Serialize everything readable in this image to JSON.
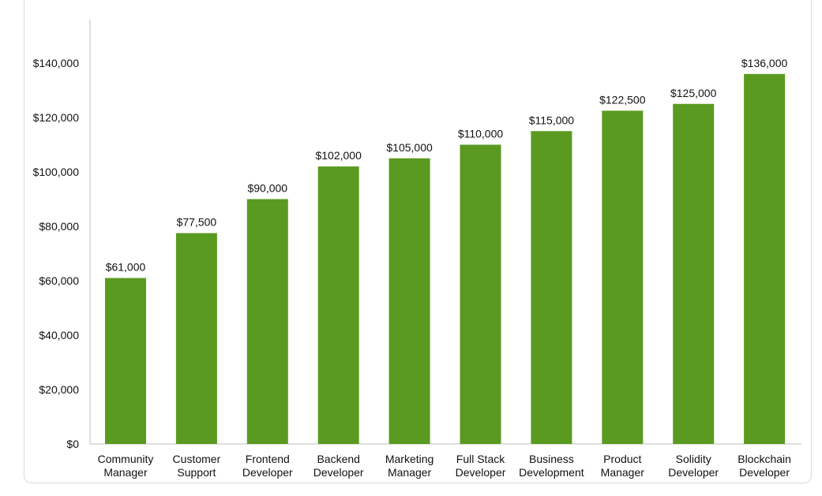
{
  "chart_data": {
    "type": "bar",
    "title": "",
    "xlabel": "",
    "ylabel": "",
    "ylim": [
      0,
      150000
    ],
    "yticks": [
      0,
      20000,
      40000,
      60000,
      80000,
      100000,
      120000,
      140000
    ],
    "ytick_labels": [
      "$0",
      "$20,000",
      "$40,000",
      "$60,000",
      "$80,000",
      "$100,000",
      "$120,000",
      "$140,000"
    ],
    "categories": [
      [
        "Community",
        "Manager"
      ],
      [
        "Customer",
        "Support"
      ],
      [
        "Frontend",
        "Developer"
      ],
      [
        "Backend",
        "Developer"
      ],
      [
        "Marketing",
        "Manager"
      ],
      [
        "Full Stack",
        "Developer"
      ],
      [
        "Business",
        "Development"
      ],
      [
        "Product",
        "Manager"
      ],
      [
        "Solidity",
        "Developer"
      ],
      [
        "Blockchain",
        "Developer"
      ]
    ],
    "values": [
      61000,
      77500,
      90000,
      102000,
      105000,
      110000,
      115000,
      122500,
      125000,
      136000
    ],
    "data_labels": [
      "$61,000",
      "$77,500",
      "$90,000",
      "$102,000",
      "$105,000",
      "$110,000",
      "$115,000",
      "$122,500",
      "$125,000",
      "$136,000"
    ],
    "bar_color": "#5a9a21",
    "grid": false,
    "legend": "none"
  }
}
